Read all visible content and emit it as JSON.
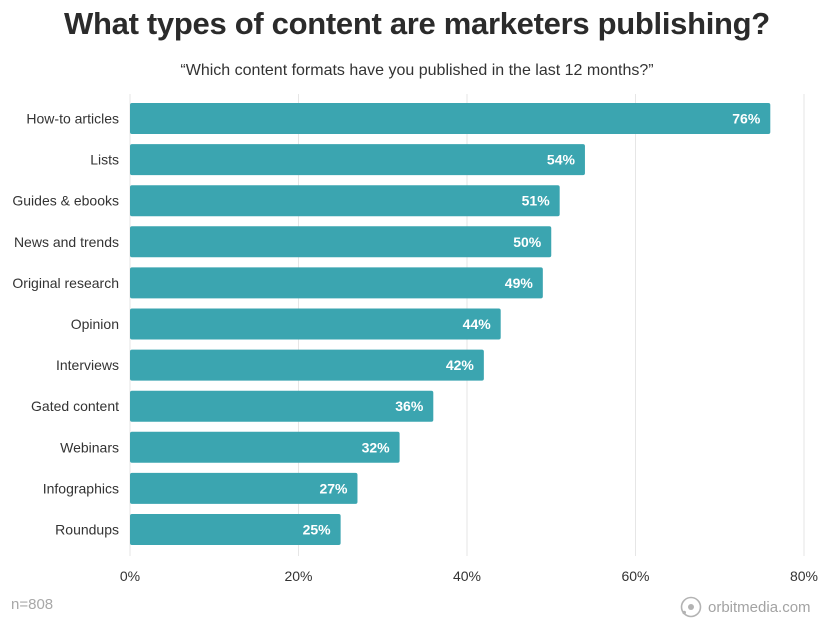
{
  "chart_data": {
    "type": "bar",
    "orientation": "horizontal",
    "title": "What types of content are marketers publishing?",
    "subtitle": "“Which content formats have you published in the last 12 months?”",
    "categories": [
      "How-to articles",
      "Lists",
      "Guides & ebooks",
      "News and trends",
      "Original research",
      "Opinion",
      "Interviews",
      "Gated content",
      "Webinars",
      "Infographics",
      "Roundups"
    ],
    "values": [
      76,
      54,
      51,
      50,
      49,
      44,
      42,
      36,
      32,
      27,
      25
    ],
    "value_labels": [
      "76%",
      "54%",
      "51%",
      "50%",
      "49%",
      "44%",
      "42%",
      "36%",
      "32%",
      "27%",
      "25%"
    ],
    "xlim": [
      0,
      80
    ],
    "xticks": [
      0,
      20,
      40,
      60,
      80
    ],
    "xtick_labels": [
      "0%",
      "20%",
      "40%",
      "60%",
      "80%"
    ],
    "xlabel": "",
    "ylabel": "",
    "grid": true,
    "legend": "none",
    "bar_color": "#3ba5b0",
    "label_color": "#ffffff"
  },
  "footnote": "n=808",
  "brand": {
    "text": "orbitmedia.com",
    "icon": "orbit-logo-icon"
  }
}
